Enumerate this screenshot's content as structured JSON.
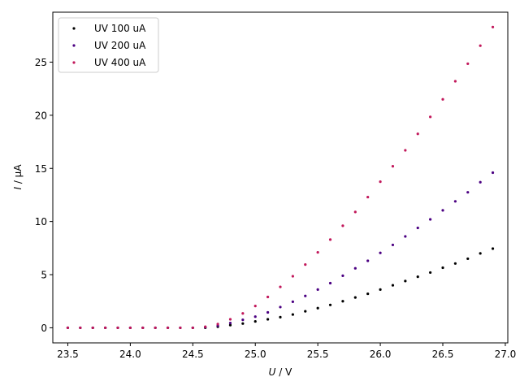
{
  "chart_data": {
    "type": "scatter",
    "title": "",
    "xlabel_italic": "U",
    "xlabel_rest": " / V",
    "ylabel_italic": "I",
    "ylabel_rest": " / µA",
    "xlim": [
      23.38,
      27.02
    ],
    "ylim": [
      -1.42,
      29.7
    ],
    "xticks": [
      "23.5",
      "24.0",
      "24.5",
      "25.0",
      "25.5",
      "26.0",
      "26.5",
      "27.0"
    ],
    "yticks": [
      "0",
      "5",
      "10",
      "15",
      "20",
      "25"
    ],
    "legend_placement": "top-left",
    "grid": false,
    "series": [
      {
        "name": "UV 100 uA",
        "color": "#000000",
        "x": [
          23.5,
          23.6,
          23.7,
          23.8,
          23.9,
          24.0,
          24.1,
          24.2,
          24.3,
          24.4,
          24.5,
          24.6,
          24.7,
          24.8,
          24.9,
          25.0,
          25.1,
          25.2,
          25.3,
          25.4,
          25.5,
          25.6,
          25.7,
          25.8,
          25.9,
          26.0,
          26.1,
          26.2,
          26.3,
          26.4,
          26.5,
          26.6,
          26.7,
          26.8,
          26.9
        ],
        "y": [
          0,
          0,
          0,
          0,
          0,
          0,
          0,
          0,
          0,
          0,
          0,
          0,
          0.1,
          0.25,
          0.4,
          0.6,
          0.8,
          1.0,
          1.25,
          1.55,
          1.85,
          2.15,
          2.5,
          2.85,
          3.2,
          3.6,
          4.0,
          4.4,
          4.8,
          5.2,
          5.65,
          6.05,
          6.5,
          7.0,
          7.45
        ]
      },
      {
        "name": "UV 200 uA",
        "color": "#4b0082",
        "x": [
          23.5,
          23.6,
          23.7,
          23.8,
          23.9,
          24.0,
          24.1,
          24.2,
          24.3,
          24.4,
          24.5,
          24.6,
          24.7,
          24.8,
          24.9,
          25.0,
          25.1,
          25.2,
          25.3,
          25.4,
          25.5,
          25.6,
          25.7,
          25.8,
          25.9,
          26.0,
          26.1,
          26.2,
          26.3,
          26.4,
          26.5,
          26.6,
          26.7,
          26.8,
          26.9
        ],
        "y": [
          0,
          0,
          0,
          0,
          0,
          0,
          0,
          0,
          0,
          0,
          0,
          0.05,
          0.2,
          0.45,
          0.75,
          1.05,
          1.45,
          1.95,
          2.45,
          3.0,
          3.6,
          4.2,
          4.9,
          5.6,
          6.3,
          7.05,
          7.8,
          8.6,
          9.4,
          10.2,
          11.05,
          11.9,
          12.75,
          13.7,
          14.6
        ]
      },
      {
        "name": "UV 400 uA",
        "color": "#c2185b",
        "x": [
          23.5,
          23.6,
          23.7,
          23.8,
          23.9,
          24.0,
          24.1,
          24.2,
          24.3,
          24.4,
          24.5,
          24.6,
          24.7,
          24.8,
          24.9,
          25.0,
          25.1,
          25.2,
          25.3,
          25.4,
          25.5,
          25.6,
          25.7,
          25.8,
          25.9,
          26.0,
          26.1,
          26.2,
          26.3,
          26.4,
          26.5,
          26.6,
          26.7,
          26.8,
          26.9
        ],
        "y": [
          0,
          0,
          0,
          0,
          0,
          0,
          0,
          0,
          0,
          0,
          0,
          0.1,
          0.35,
          0.8,
          1.35,
          2.05,
          2.9,
          3.85,
          4.85,
          5.95,
          7.1,
          8.3,
          9.6,
          10.9,
          12.3,
          13.75,
          15.2,
          16.7,
          18.25,
          19.85,
          21.5,
          23.2,
          24.85,
          26.55,
          28.3
        ]
      }
    ]
  }
}
